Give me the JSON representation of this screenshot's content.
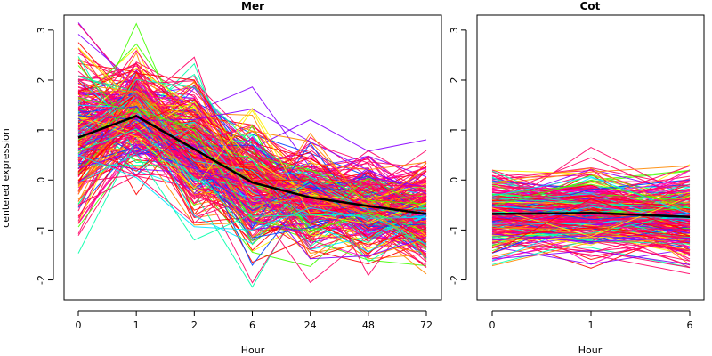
{
  "chart_data": [
    {
      "type": "line",
      "title": "Mer",
      "xlabel": "Hour",
      "ylabel": "centered expression",
      "categories": [
        "0",
        "1",
        "2",
        "6",
        "24",
        "48",
        "72"
      ],
      "yticks": [
        -2,
        -1,
        0,
        1,
        2,
        3
      ],
      "ylim": [
        -2.4,
        3.3
      ],
      "grid": false,
      "legend": "none",
      "mean_series": {
        "color": "#000000",
        "values": [
          0.85,
          1.28,
          0.62,
          -0.05,
          -0.35,
          -0.52,
          -0.68
        ]
      },
      "gene_profiles": {
        "count": 300,
        "colors": [
          "#ff0000",
          "#ff8800",
          "#ffee00",
          "#44ff00",
          "#00ffaa",
          "#00e5ff",
          "#0044ff",
          "#8800ff",
          "#ff00cc",
          "#ff0066"
        ]
      }
    },
    {
      "type": "line",
      "title": "Cot",
      "xlabel": "Hour",
      "ylabel": "",
      "categories": [
        "0",
        "1",
        "6"
      ],
      "yticks": [
        -2,
        -1,
        0,
        1,
        2,
        3
      ],
      "ylim": [
        -2.4,
        3.3
      ],
      "grid": false,
      "legend": "none",
      "mean_series": {
        "color": "#000000",
        "values": [
          -0.68,
          -0.66,
          -0.74
        ]
      },
      "gene_profiles": {
        "count": 300,
        "colors": [
          "#ff0000",
          "#ff8800",
          "#ffee00",
          "#44ff00",
          "#00ffaa",
          "#00e5ff",
          "#0044ff",
          "#8800ff",
          "#ff00cc",
          "#ff0066"
        ]
      }
    }
  ]
}
